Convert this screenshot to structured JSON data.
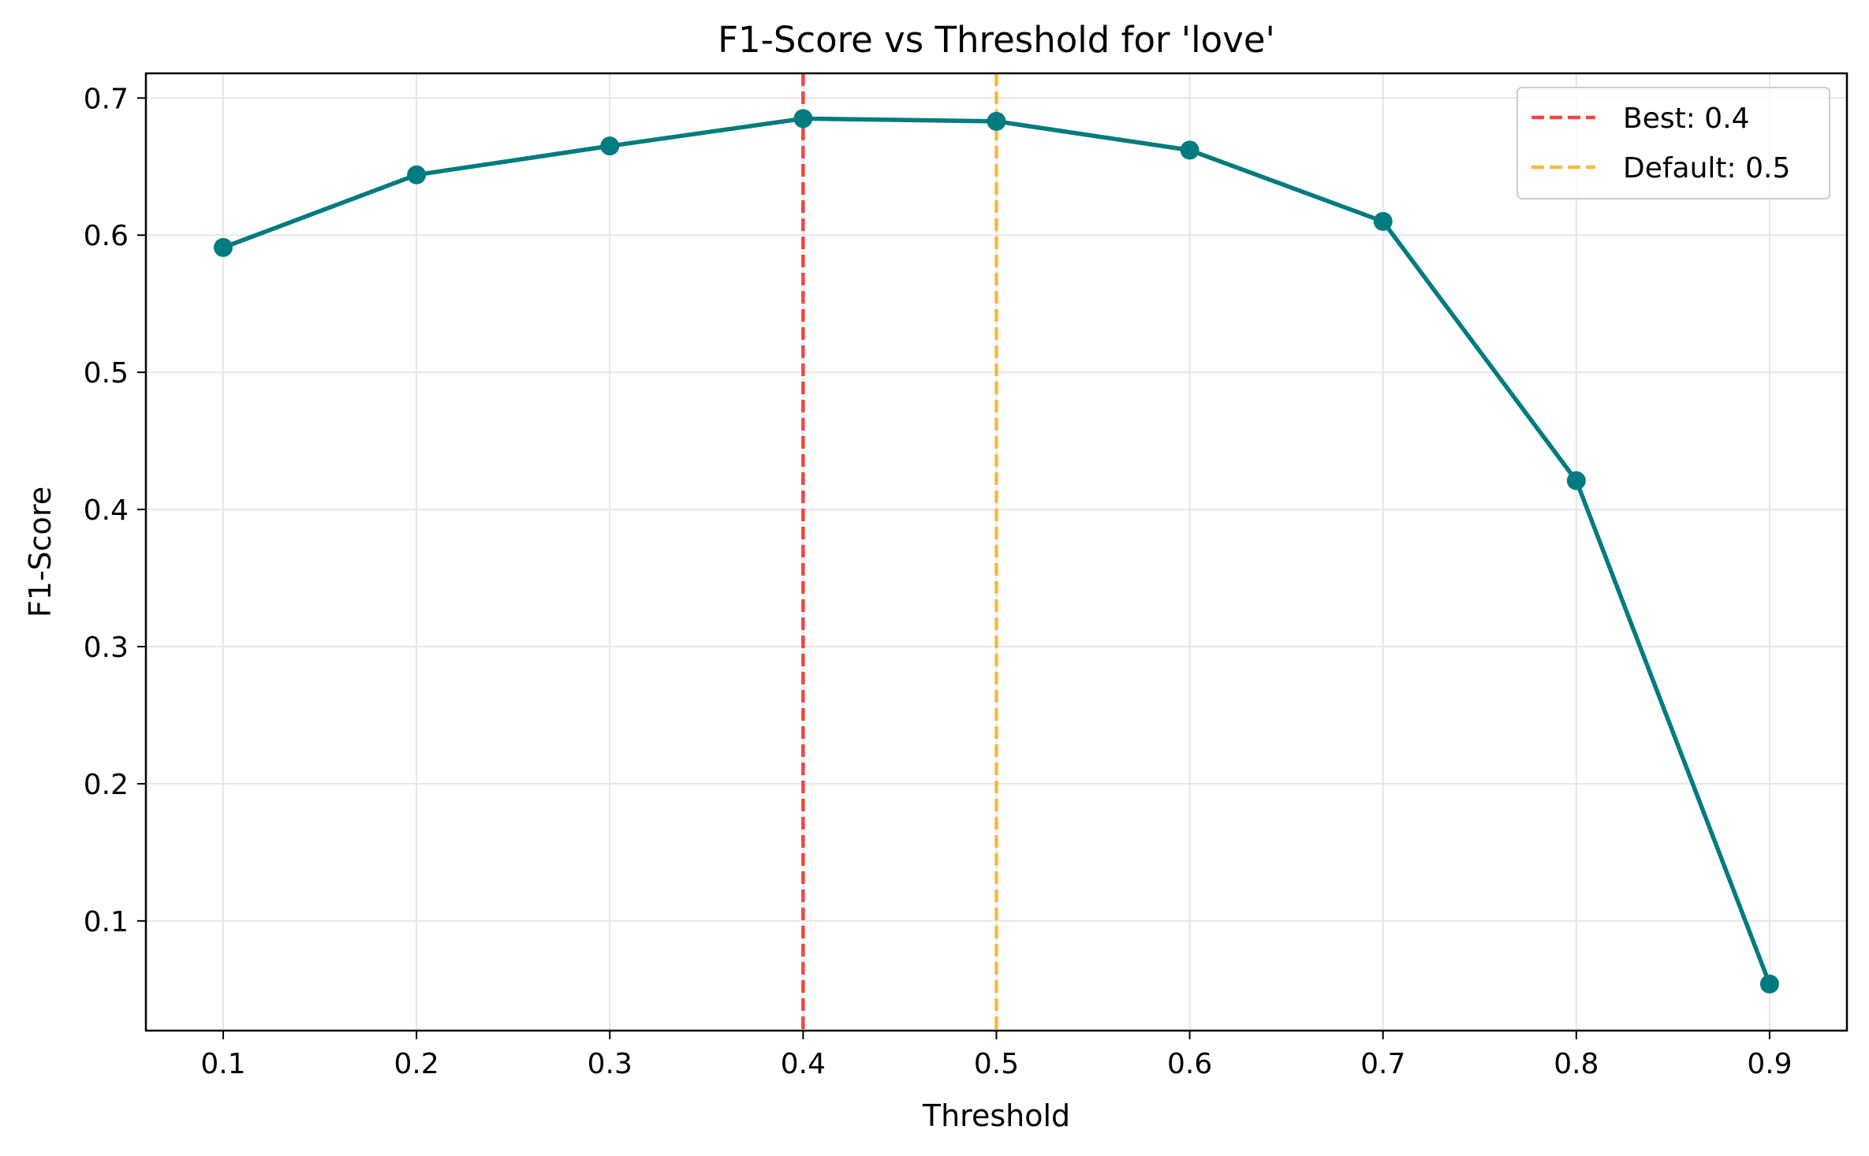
{
  "chart_data": {
    "type": "line",
    "title": "F1-Score vs Threshold for 'love'",
    "xlabel": "Threshold",
    "ylabel": "F1-Score",
    "xlim": [
      0.06,
      0.94
    ],
    "ylim": [
      0.02,
      0.718
    ],
    "xticks": [
      0.1,
      0.2,
      0.3,
      0.4,
      0.5,
      0.6,
      0.7,
      0.8,
      0.9
    ],
    "yticks": [
      0.1,
      0.2,
      0.3,
      0.4,
      0.5,
      0.6,
      0.7
    ],
    "grid": true,
    "legend_position": "top-right",
    "series": [
      {
        "x": [
          0.1,
          0.2,
          0.3,
          0.4,
          0.5,
          0.6,
          0.7,
          0.8,
          0.9
        ],
        "values": [
          0.591,
          0.644,
          0.665,
          0.685,
          0.683,
          0.662,
          0.61,
          0.421,
          0.054
        ],
        "color": "#007b7f"
      }
    ],
    "reference_lines": [
      {
        "label": "Best: 0.4",
        "x": 0.4,
        "color": "#f04646"
      },
      {
        "label": "Default: 0.5",
        "x": 0.5,
        "color": "#f5b942"
      }
    ]
  }
}
